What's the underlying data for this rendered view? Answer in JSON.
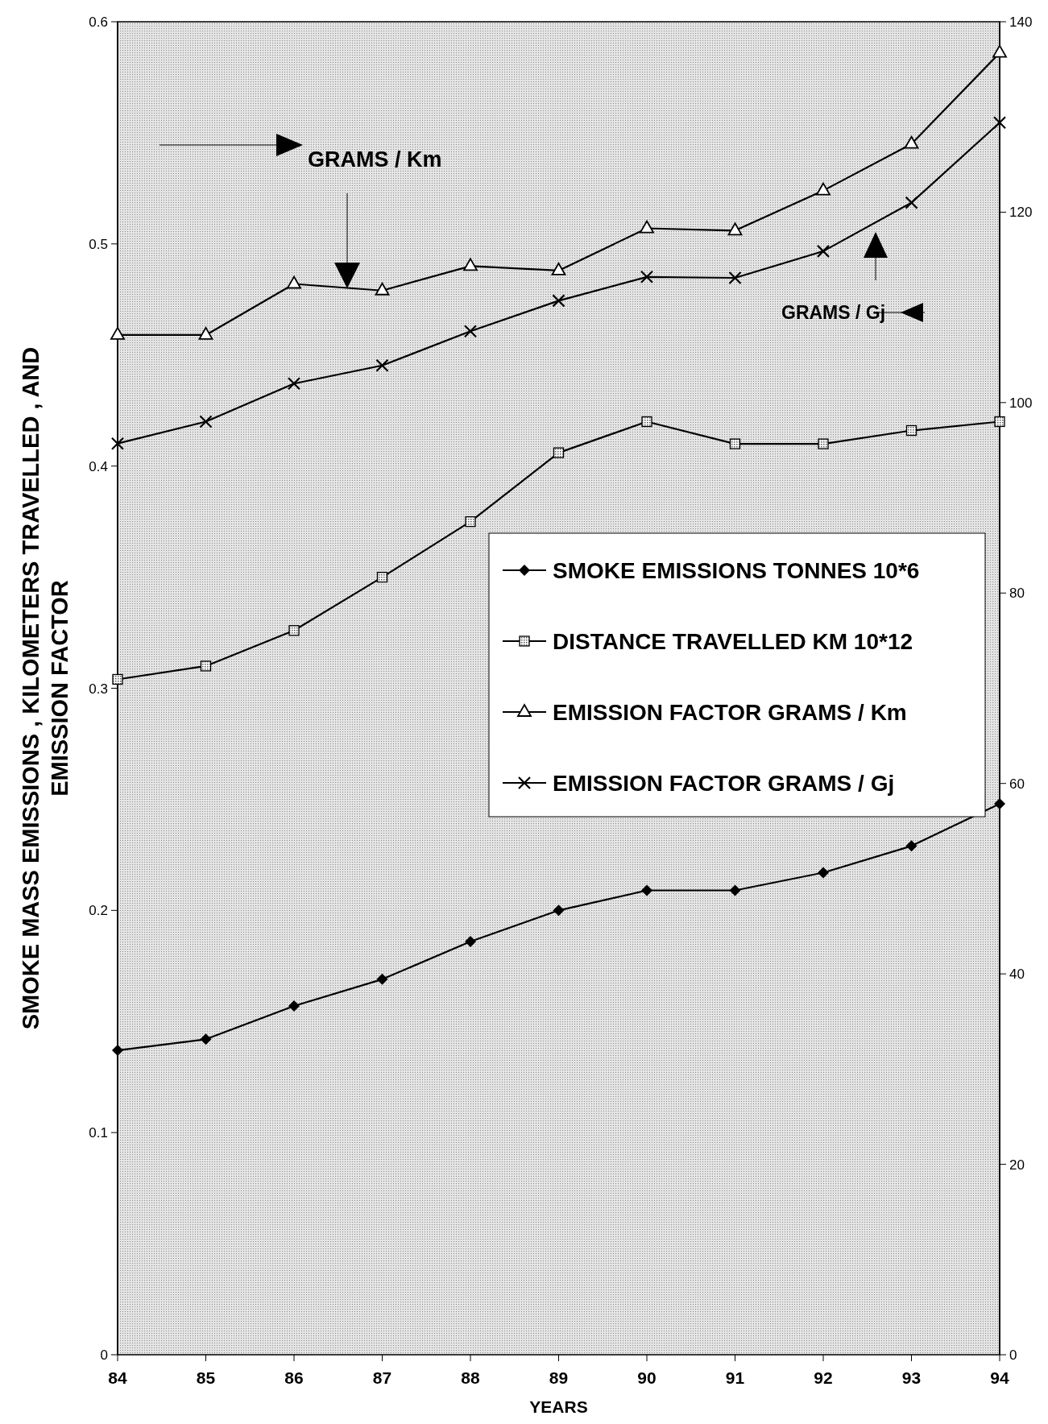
{
  "chart_data": {
    "type": "line",
    "xlabel": "YEARS",
    "ylabel": "SMOKE MASS EMISSIONS , KILOMETERS TRAVELLED , AND EMISSION FACTOR",
    "categories": [
      "84",
      "85",
      "86",
      "87",
      "88",
      "89",
      "90",
      "91",
      "92",
      "93",
      "94"
    ],
    "series": [
      {
        "name": "SMOKE EMISSIONS TONNES 10*6",
        "color": "#000000",
        "marker": "diamond",
        "values": [
          0.137,
          0.142,
          0.157,
          0.169,
          0.186,
          0.2,
          0.209,
          0.209,
          0.217,
          0.229,
          0.248
        ]
      },
      {
        "name": "DISTANCE TRAVELLED KM 10*12",
        "color": "#000000",
        "marker": "square",
        "values": [
          0.304,
          0.31,
          0.326,
          0.35,
          0.375,
          0.406,
          0.42,
          0.41,
          0.41,
          0.416,
          0.42
        ]
      },
      {
        "name": "EMISSION FACTOR GRAMS / Km",
        "color": "#000000",
        "marker": "triangle",
        "values": [
          0.459,
          0.459,
          0.482,
          0.479,
          0.49,
          0.488,
          0.507,
          0.506,
          0.524,
          0.545,
          0.586
        ]
      },
      {
        "name": "EMISSION FACTOR GRAMS / Gj",
        "color": "#000000",
        "marker": "cross",
        "axis": "y2",
        "values": [
          95.7,
          98.0,
          102.0,
          103.9,
          107.5,
          110.7,
          113.2,
          113.1,
          115.9,
          121.0,
          129.4
        ]
      }
    ],
    "ylim": [
      0,
      0.6
    ],
    "yticks": [
      0,
      0.1,
      0.2,
      0.3,
      0.4,
      0.5,
      0.6
    ],
    "y2lim": [
      0,
      140
    ],
    "y2ticks": [
      0,
      20,
      40,
      60,
      80,
      100,
      120,
      140
    ],
    "annotations": [
      "GRAMS / Km",
      "GRAMS / Gj"
    ],
    "legend": "right",
    "grid": false
  }
}
